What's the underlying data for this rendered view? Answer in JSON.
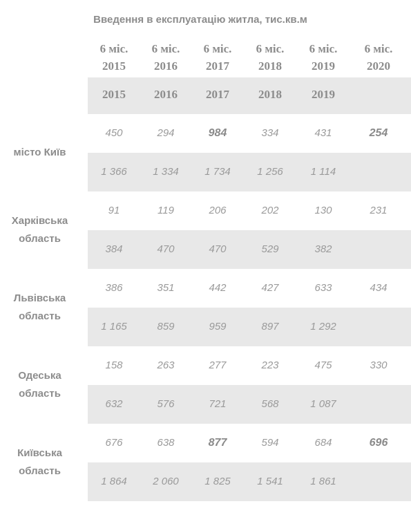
{
  "title": "Введення в експлуатацію житла, тис.кв.м",
  "table": {
    "header": [
      {
        "period": "6 міс.",
        "year": "2015"
      },
      {
        "period": "6 міс.",
        "year": "2016"
      },
      {
        "period": "6 міс.",
        "year": "2017"
      },
      {
        "period": "6 міс.",
        "year": "2018"
      },
      {
        "period": "6 міс.",
        "year": "2019"
      },
      {
        "period": "6 міс.",
        "year": "2020"
      }
    ],
    "year_header": [
      "2015",
      "2016",
      "2017",
      "2018",
      "2019"
    ],
    "rows": [
      {
        "region": "місто Київ",
        "half_year": [
          "450",
          "294",
          "984",
          "334",
          "431",
          "254"
        ],
        "full_year": [
          "1 366",
          "1 334",
          "1 734",
          "1 256",
          "1 114"
        ]
      },
      {
        "region": "Харківська область",
        "half_year": [
          "91",
          "119",
          "206",
          "202",
          "130",
          "231"
        ],
        "full_year": [
          "384",
          "470",
          "470",
          "529",
          "382"
        ]
      },
      {
        "region": "Львівська область",
        "half_year": [
          "386",
          "351",
          "442",
          "427",
          "633",
          "434"
        ],
        "full_year": [
          "1 165",
          "859",
          "959",
          "897",
          "1 292"
        ]
      },
      {
        "region": "Одеська область",
        "half_year": [
          "158",
          "263",
          "277",
          "223",
          "475",
          "330"
        ],
        "full_year": [
          "632",
          "576",
          "721",
          "568",
          "1 087"
        ]
      },
      {
        "region": "Київська область",
        "half_year": [
          "676",
          "638",
          "877",
          "594",
          "684",
          "696"
        ],
        "full_year": [
          "1 864",
          "2 060",
          "1 825",
          "1 541",
          "1 861"
        ]
      }
    ]
  }
}
